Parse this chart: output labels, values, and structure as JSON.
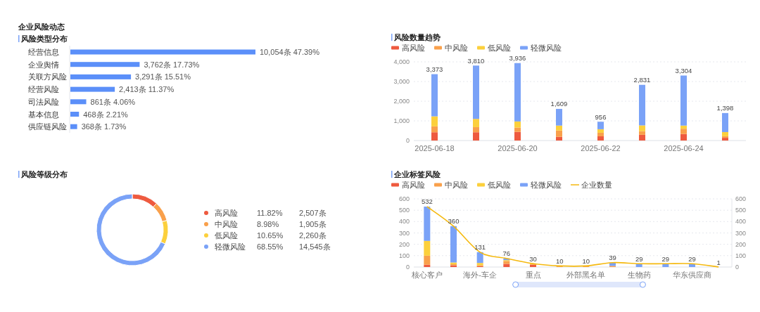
{
  "chart_data": [
    {
      "type": "bar",
      "orientation": "horizontal",
      "title": "企业风险动态",
      "subtitle": "风险类型分布",
      "categories": [
        "经营信息",
        "企业舆情",
        "关联方风险",
        "经营风险",
        "司法风险",
        "基本信息",
        "供应链风险"
      ],
      "values": [
        10054,
        3762,
        3291,
        2413,
        861,
        468,
        368
      ],
      "color": "#5b8ff9",
      "value_labels": [
        "10,054条 47.39%",
        "3,762条 17.73%",
        "3,291条 15.51%",
        "2,413条 11.37%",
        "861条 4.06%",
        "468条 2.21%",
        "368条 1.73%"
      ]
    },
    {
      "type": "bar",
      "stacked": true,
      "title": "风险数量趋势",
      "categories": [
        "2025-06-18",
        null,
        "2025-06-20",
        null,
        "2025-06-22",
        null,
        "2025-06-24",
        null
      ],
      "series": [
        {
          "name": "高风险",
          "color": "#ee5a3f",
          "values": [
            420,
            420,
            440,
            190,
            215,
            290,
            330,
            140
          ]
        },
        {
          "name": "中风险",
          "color": "#f9a04b",
          "values": [
            300,
            260,
            220,
            320,
            180,
            190,
            270,
            80
          ]
        },
        {
          "name": "低风险",
          "color": "#fcd03c",
          "values": [
            510,
            420,
            310,
            250,
            180,
            290,
            160,
            210
          ]
        },
        {
          "name": "轻微风险",
          "color": "#7aa2f7",
          "values": [
            2143,
            2710,
            2966,
            849,
            381,
            2061,
            2544,
            968
          ]
        }
      ],
      "totals": [
        "3,373",
        "3,810",
        "3,936",
        "1,609",
        "956",
        "2,831",
        "3,304",
        "1,398"
      ],
      "ylim": [
        0,
        4000
      ],
      "yticks": [
        0,
        {
          "value": 1000,
          "label": "1,000"
        },
        {
          "value": 2000,
          "label": "2,000"
        },
        {
          "value": 3000,
          "label": "3,000"
        },
        {
          "value": 4000,
          "label": "4,000"
        }
      ],
      "grid": "y",
      "legend": "top left"
    },
    {
      "type": "donut",
      "title": "风险等级分布",
      "categories": [
        "高风险",
        "中风险",
        "低风险",
        "轻微风险"
      ],
      "values": [
        11.82,
        8.98,
        10.65,
        68.55
      ],
      "colors": [
        "#ee5a3f",
        "#f9a04b",
        "#fcd03c",
        "#7aa2f7"
      ],
      "value_labels": [
        "11.82%\t2,507条",
        "8.98%\t1,905条",
        "10.65%\t2,260条",
        "68.55%\t14,545条"
      ],
      "legend": "right"
    },
    {
      "type": "bar",
      "stacked": true,
      "title": "企业标签风险",
      "categories": [
        "核心客户",
        null,
        "海外-车企",
        null,
        "重点",
        null,
        "外部黑名单",
        null,
        "生物药",
        null,
        "华东供应商",
        null
      ],
      "series": [
        {
          "name": "高风险",
          "color": "#ee5a3f",
          "values": [
            20,
            15,
            6,
            28,
            20,
            0,
            0,
            0,
            0,
            0,
            0,
            0
          ]
        },
        {
          "name": "中风险",
          "color": "#f9a04b",
          "values": [
            80,
            10,
            10,
            25,
            5,
            10,
            10,
            10,
            0,
            0,
            0,
            null
          ]
        },
        {
          "name": "低风险",
          "color": "#fcd03c",
          "values": [
            130,
            15,
            20,
            8,
            5,
            0,
            0,
            0,
            0,
            0,
            0,
            0
          ]
        },
        {
          "name": "轻微风险",
          "color": "#7aa2f7",
          "values": [
            302,
            320,
            95,
            15,
            0,
            0,
            0,
            29,
            29,
            29,
            29,
            0
          ]
        },
        {
          "name": "企业数量",
          "type": "line",
          "axis": "y2",
          "color": "#f5b90f",
          "values": [
            532,
            360,
            131,
            76,
            30,
            10,
            10,
            39,
            29,
            29,
            29,
            1
          ]
        }
      ],
      "totals": [
        "532",
        "360",
        "131",
        "76",
        "30",
        "10",
        "10",
        "39",
        "29",
        "29",
        "29",
        "1"
      ],
      "ylim": [
        0,
        600
      ],
      "yticks": [
        0,
        100,
        200,
        300,
        400,
        500,
        600
      ],
      "y2lim": [
        0,
        600
      ],
      "y2ticks": [
        0,
        100,
        200,
        300,
        400,
        500,
        600
      ],
      "grid": "y",
      "legend": "top left"
    }
  ]
}
